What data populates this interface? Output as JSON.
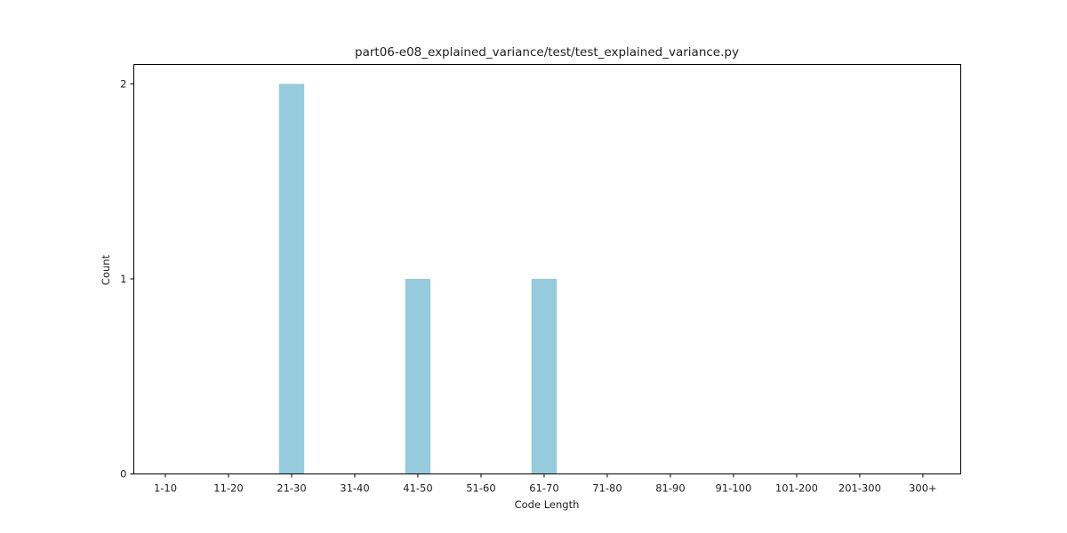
{
  "chart_data": {
    "type": "bar",
    "title": "part06-e08_explained_variance/test/test_explained_variance.py",
    "xlabel": "Code Length",
    "ylabel": "Count",
    "categories": [
      "1-10",
      "11-20",
      "21-30",
      "31-40",
      "41-50",
      "51-60",
      "61-70",
      "71-80",
      "81-90",
      "91-100",
      "101-200",
      "201-300",
      "300+"
    ],
    "values": [
      0,
      0,
      2,
      0,
      1,
      0,
      1,
      0,
      0,
      0,
      0,
      0,
      0
    ],
    "yticks": [
      0,
      1,
      2
    ],
    "ylim": [
      0,
      2.1
    ],
    "bar_color": "#96cadd",
    "grid": false,
    "legend": "none"
  }
}
